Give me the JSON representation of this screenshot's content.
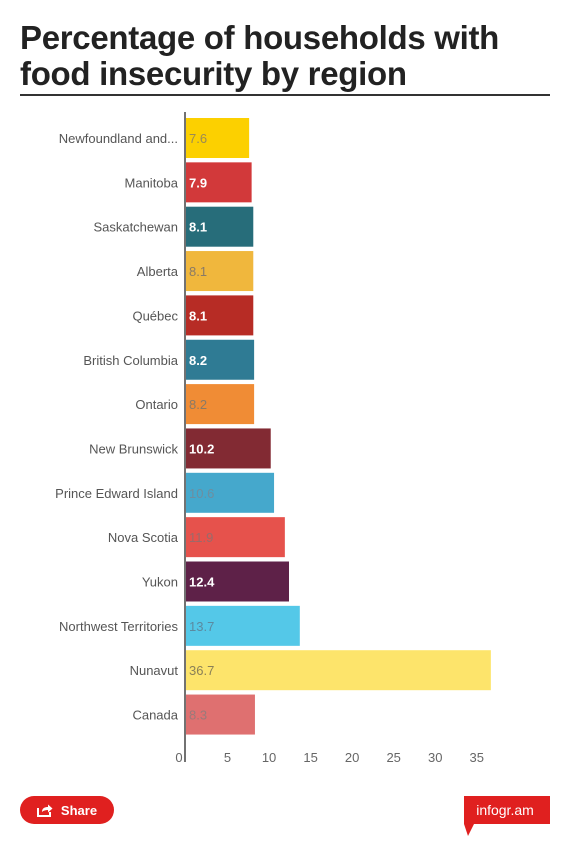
{
  "title": "Percentage of households with food insecurity by region",
  "share": {
    "label": "Share",
    "icon": "share-icon"
  },
  "brand": {
    "label": "infogr.am",
    "color": "#e0201f"
  },
  "chart_data": {
    "type": "bar",
    "orientation": "horizontal",
    "categories": [
      "Newfoundland and...",
      "Manitoba",
      "Saskatchewan",
      "Alberta",
      "Québec",
      "British Columbia",
      "Ontario",
      "New Brunswick",
      "Prince Edward Island",
      "Nova Scotia",
      "Yukon",
      "Northwest Territories",
      "Nunavut",
      "Canada"
    ],
    "values": [
      7.6,
      7.9,
      8.1,
      8.1,
      8.1,
      8.2,
      8.2,
      10.2,
      10.6,
      11.9,
      12.4,
      13.7,
      36.7,
      8.3
    ],
    "value_labels": [
      "7.6",
      "7.9",
      "8.1",
      "8.1",
      "8.1",
      "8.2",
      "8.2",
      "10.2",
      "10.6",
      "11.9",
      "12.4",
      "13.7",
      "36.7",
      "8.3"
    ],
    "colors": [
      "#fcd000",
      "#d2393a",
      "#276d7a",
      "#f0b73d",
      "#b72c25",
      "#2f7b94",
      "#f08c35",
      "#822a33",
      "#45a8cc",
      "#e6524c",
      "#5e2148",
      "#54c8e8",
      "#fde46b",
      "#df7070"
    ],
    "label_colors": [
      "#9a8a55",
      "#ffffff",
      "#ffffff",
      "#8a7a66",
      "#ffffff",
      "#ffffff",
      "#8a7a66",
      "#ffffff",
      "#6d8ea0",
      "#9a6a6a",
      "#ffffff",
      "#5b8aa0",
      "#8a8057",
      "#9a7a7a"
    ],
    "x_ticks": [
      0,
      5,
      10,
      15,
      20,
      25,
      30,
      35
    ],
    "xlim": [
      0,
      37.8
    ],
    "grid": false
  }
}
